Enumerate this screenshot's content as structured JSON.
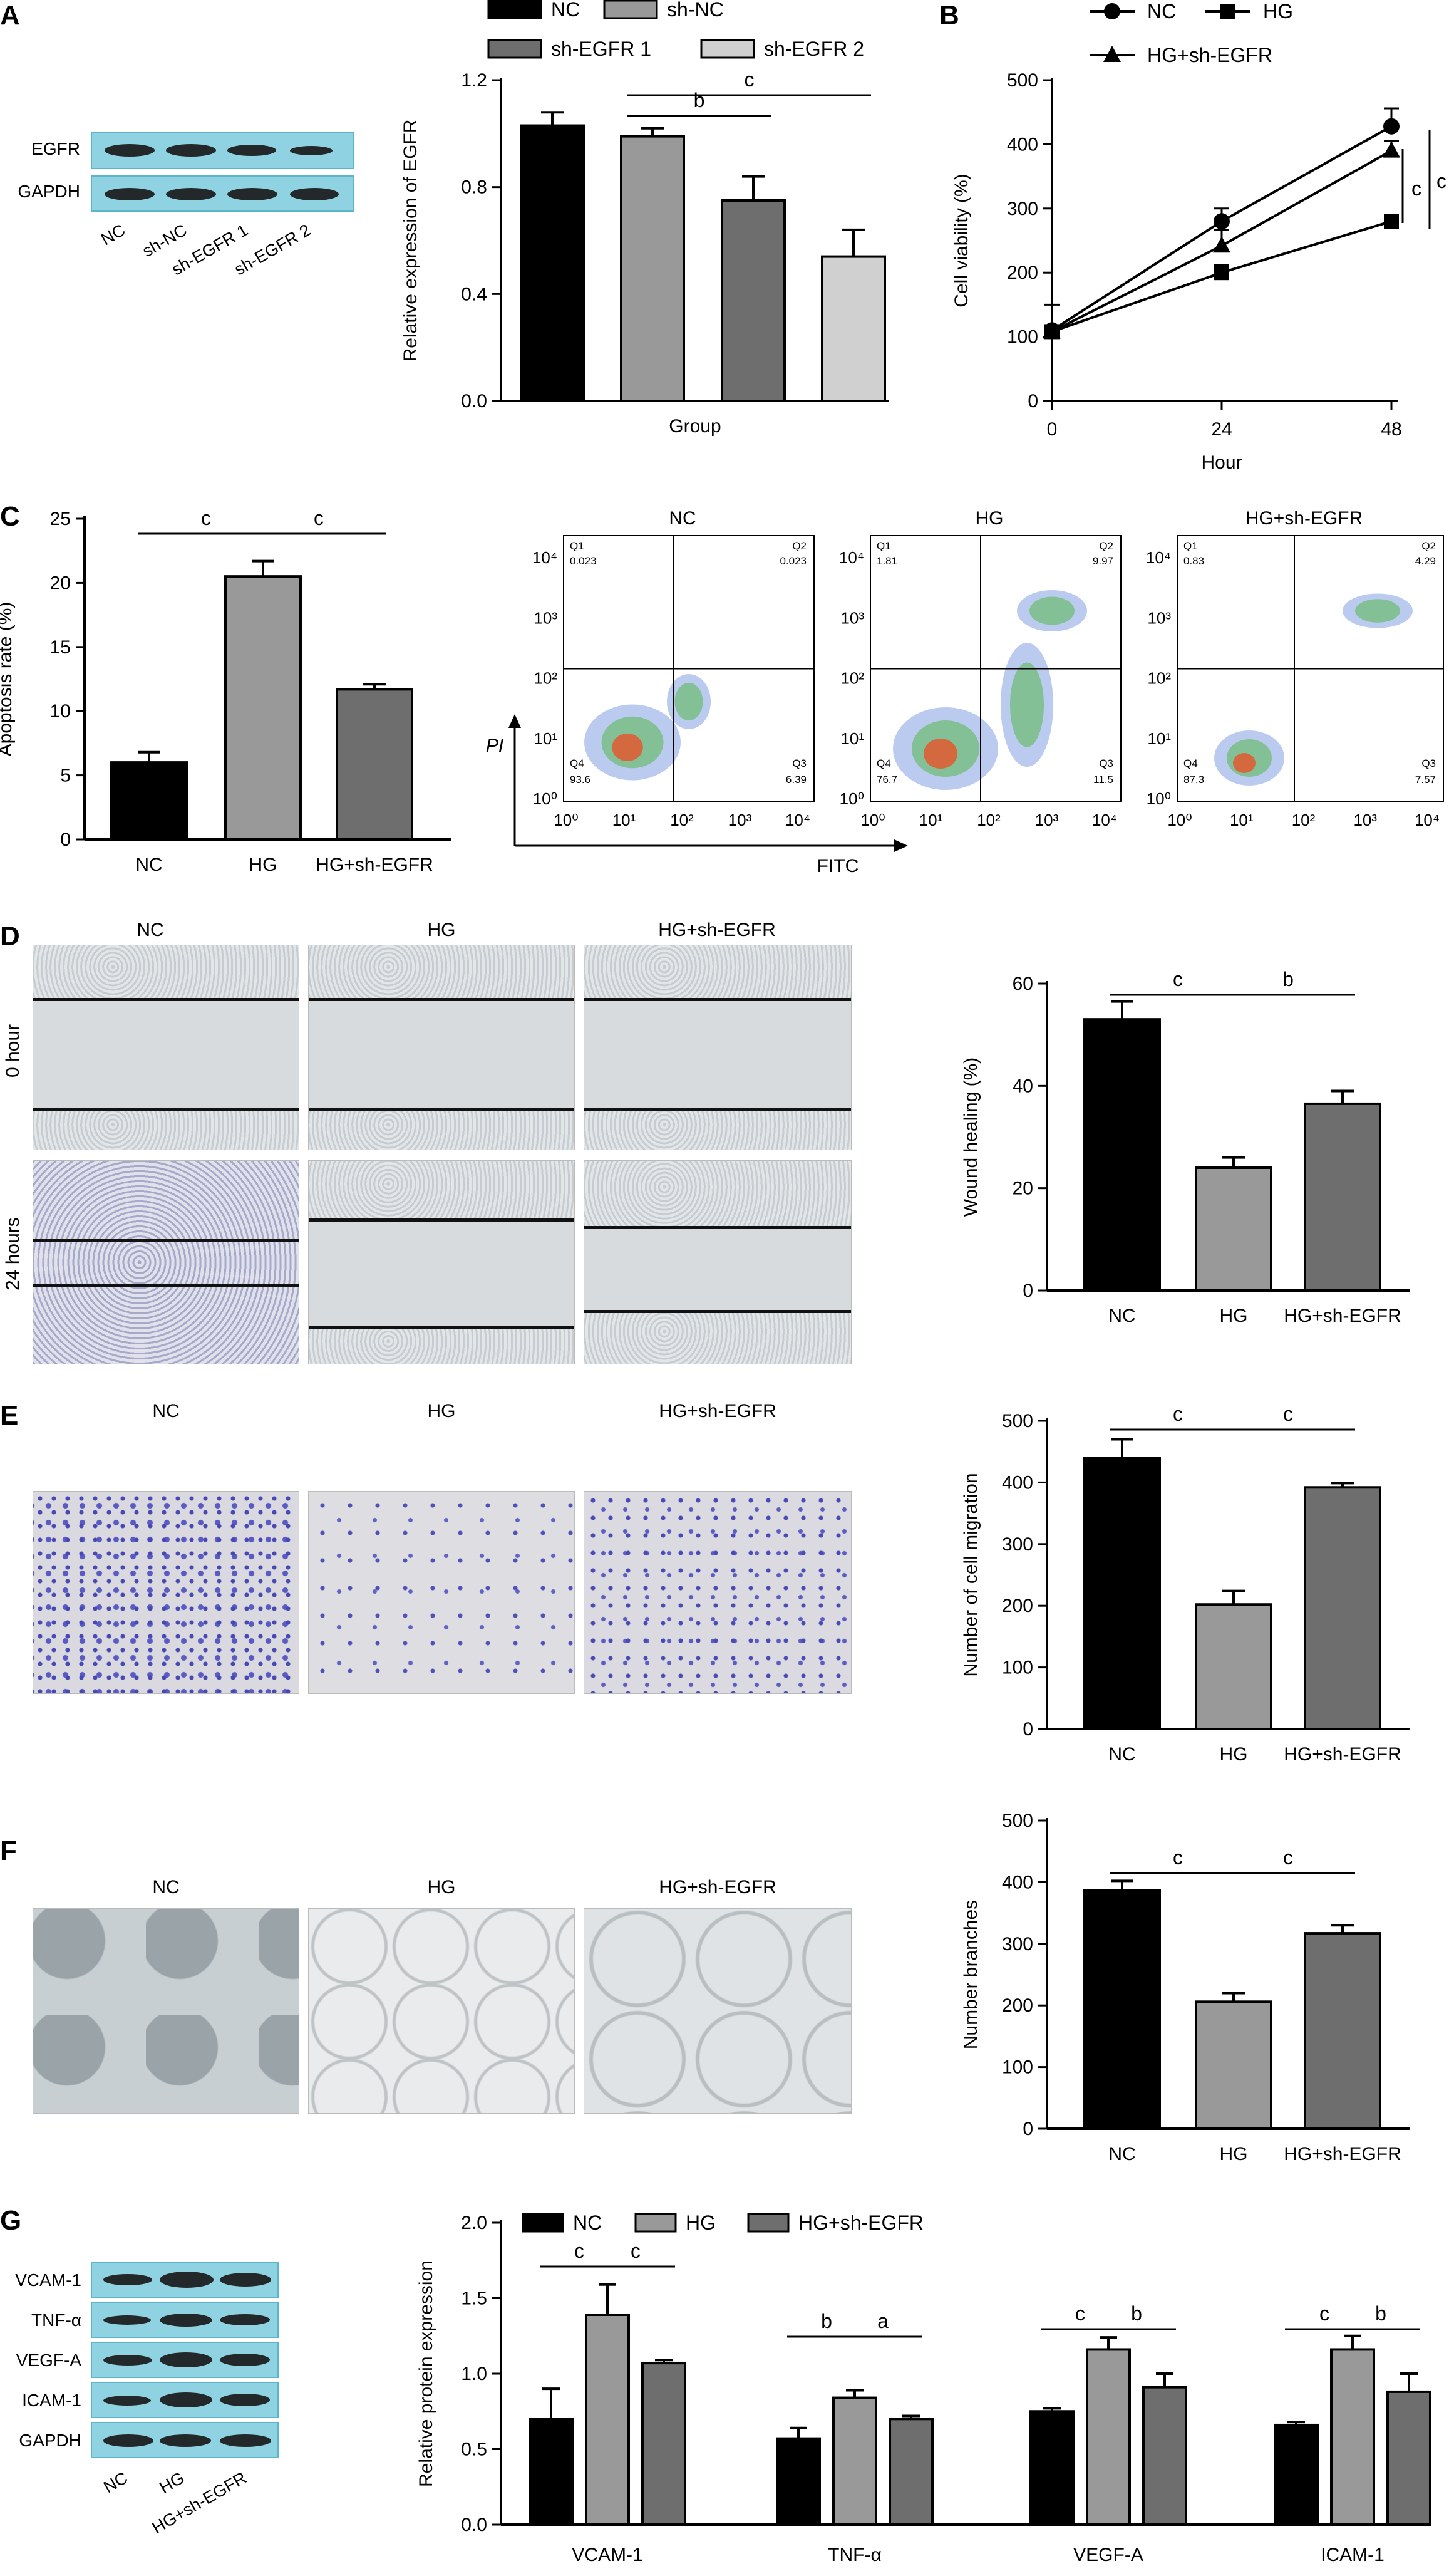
{
  "panels": {
    "A": {
      "letter": "A",
      "blot": {
        "rows": [
          "EGFR",
          "GAPDH"
        ],
        "lanes": [
          "NC",
          "sh-NC",
          "sh-EGFR 1",
          "sh-EGFR 2"
        ]
      }
    },
    "B": {
      "letter": "B"
    },
    "C": {
      "letter": "C",
      "flow": {
        "titles": [
          "NC",
          "HG",
          "HG+sh-EGFR"
        ],
        "xlabel": "FITC",
        "ylabel": "PI",
        "ticks": [
          "10⁰",
          "10¹",
          "10²",
          "10³",
          "10⁴"
        ],
        "quadrants": [
          {
            "q1": "Q1",
            "q1v": "0.023",
            "q2": "Q2",
            "q2v": "0.023",
            "q3": "Q3",
            "q3v": "6.39",
            "q4": "Q4",
            "q4v": "93.6"
          },
          {
            "q1": "Q1",
            "q1v": "1.81",
            "q2": "Q2",
            "q2v": "9.97",
            "q3": "Q3",
            "q3v": "11.5",
            "q4": "Q4",
            "q4v": "76.7"
          },
          {
            "q1": "Q1",
            "q1v": "0.83",
            "q2": "Q2",
            "q2v": "4.29",
            "q3": "Q3",
            "q3v": "7.57",
            "q4": "Q4",
            "q4v": "87.3"
          }
        ]
      }
    },
    "D": {
      "letter": "D",
      "titles": [
        "NC",
        "HG",
        "HG+sh-EGFR"
      ],
      "rows": [
        "0 hour",
        "24 hours"
      ]
    },
    "E": {
      "letter": "E",
      "titles": [
        "NC",
        "HG",
        "HG+sh-EGFR"
      ]
    },
    "F": {
      "letter": "F",
      "titles": [
        "NC",
        "HG",
        "HG+sh-EGFR"
      ]
    },
    "G": {
      "letter": "G",
      "blot": {
        "rows": [
          "VCAM-1",
          "TNF-α",
          "VEGF-A",
          "ICAM-1",
          "GAPDH"
        ],
        "lanes": [
          "NC",
          "HG",
          "HG+sh-EGFR"
        ]
      }
    }
  },
  "chart_data": [
    {
      "id": "A",
      "type": "bar",
      "legend": [
        "NC",
        "sh-NC",
        "sh-EGFR 1",
        "sh-EGFR 2"
      ],
      "categories": [
        "NC",
        "sh-NC",
        "sh-EGFR 1",
        "sh-EGFR 2"
      ],
      "values": [
        1.03,
        0.99,
        0.75,
        0.54
      ],
      "errors": [
        0.05,
        0.03,
        0.09,
        0.1
      ],
      "colors": [
        "#000000",
        "#999999",
        "#6e6e6e",
        "#d0d0d0"
      ],
      "xlabel": "Group",
      "ylabel": "Relative expression of EGFR",
      "ylim": [
        0,
        1.2
      ],
      "yticks": [
        "0.0",
        "0.4",
        "0.8",
        "1.2"
      ],
      "significance": [
        {
          "from": 1,
          "to": 2,
          "label": "b"
        },
        {
          "from": 1,
          "to": 3,
          "label": "c"
        }
      ]
    },
    {
      "id": "B",
      "type": "line",
      "x": [
        0,
        24,
        48
      ],
      "xticks": [
        "0",
        "24",
        "48"
      ],
      "series": [
        {
          "name": "NC",
          "values": [
            110,
            280,
            428
          ],
          "errors": [
            40,
            20,
            28
          ],
          "marker": "circle"
        },
        {
          "name": "HG",
          "values": [
            108,
            200,
            280
          ],
          "errors": [
            10,
            12,
            8
          ],
          "marker": "square"
        },
        {
          "name": "HG+sh-EGFR",
          "values": [
            108,
            242,
            390
          ],
          "errors": [
            8,
            25,
            15
          ],
          "marker": "triangle"
        }
      ],
      "xlabel": "Hour",
      "ylabel": "Cell viability (%)",
      "ylim": [
        0,
        500
      ],
      "yticks": [
        "0",
        "100",
        "200",
        "300",
        "400",
        "500"
      ],
      "brackets": [
        "c",
        "c"
      ]
    },
    {
      "id": "C",
      "type": "bar",
      "categories": [
        "NC",
        "HG",
        "HG+sh-EGFR"
      ],
      "values": [
        6.0,
        20.5,
        11.7
      ],
      "errors": [
        0.8,
        1.2,
        0.4
      ],
      "colors": [
        "#000000",
        "#999999",
        "#6e6e6e"
      ],
      "ylabel": "Apoptosis rate (%)",
      "ylim": [
        0,
        25
      ],
      "yticks": [
        "0",
        "5",
        "10",
        "15",
        "20",
        "25"
      ],
      "significance": [
        {
          "from": 0,
          "to": 1,
          "label": "c"
        },
        {
          "from": 1,
          "to": 2,
          "label": "c"
        }
      ]
    },
    {
      "id": "D",
      "type": "bar",
      "categories": [
        "NC",
        "HG",
        "HG+sh-EGFR"
      ],
      "values": [
        53,
        24,
        36.5
      ],
      "errors": [
        3.5,
        2,
        2.5
      ],
      "colors": [
        "#000000",
        "#999999",
        "#6e6e6e"
      ],
      "ylabel": "Wound healing (%)",
      "ylim": [
        0,
        60
      ],
      "yticks": [
        "0",
        "20",
        "40",
        "60"
      ],
      "significance": [
        {
          "from": 0,
          "to": 1,
          "label": "c"
        },
        {
          "from": 1,
          "to": 2,
          "label": "b"
        }
      ]
    },
    {
      "id": "E",
      "type": "bar",
      "categories": [
        "NC",
        "HG",
        "HG+sh-EGFR"
      ],
      "values": [
        440,
        202,
        392
      ],
      "errors": [
        30,
        22,
        7
      ],
      "colors": [
        "#000000",
        "#999999",
        "#6e6e6e"
      ],
      "ylabel": "Number of cell migration",
      "ylim": [
        0,
        500
      ],
      "yticks": [
        "0",
        "100",
        "200",
        "300",
        "400",
        "500"
      ],
      "significance": [
        {
          "from": 0,
          "to": 1,
          "label": "c"
        },
        {
          "from": 1,
          "to": 2,
          "label": "c"
        }
      ]
    },
    {
      "id": "F",
      "type": "bar",
      "categories": [
        "NC",
        "HG",
        "HG+sh-EGFR"
      ],
      "values": [
        387,
        206,
        317
      ],
      "errors": [
        15,
        14,
        13
      ],
      "colors": [
        "#000000",
        "#999999",
        "#6e6e6e"
      ],
      "ylabel": "Number branches",
      "ylim": [
        0,
        500
      ],
      "yticks": [
        "0",
        "100",
        "200",
        "300",
        "400",
        "500"
      ],
      "significance": [
        {
          "from": 0,
          "to": 1,
          "label": "c"
        },
        {
          "from": 1,
          "to": 2,
          "label": "c"
        }
      ]
    },
    {
      "id": "G",
      "type": "bar",
      "legend": [
        "NC",
        "HG",
        "HG+sh-EGFR"
      ],
      "categories": [
        "VCAM-1",
        "TNF-α",
        "VEGF-A",
        "ICAM-1"
      ],
      "series": [
        {
          "name": "NC",
          "values": [
            0.7,
            0.57,
            0.75,
            0.66
          ],
          "errors": [
            0.2,
            0.07,
            0.02,
            0.02
          ]
        },
        {
          "name": "HG",
          "values": [
            1.39,
            0.84,
            1.16,
            1.16
          ],
          "errors": [
            0.2,
            0.05,
            0.08,
            0.09
          ]
        },
        {
          "name": "HG+sh-EGFR",
          "values": [
            1.07,
            0.7,
            0.91,
            0.88
          ],
          "errors": [
            0.02,
            0.02,
            0.09,
            0.12
          ]
        }
      ],
      "colors": [
        "#000000",
        "#999999",
        "#6e6e6e"
      ],
      "ylabel": "Relative protein expression",
      "ylim": [
        0,
        2.0
      ],
      "yticks": [
        "0.0",
        "0.5",
        "1.0",
        "1.5",
        "2.0"
      ],
      "significance": [
        {
          "cat": 0,
          "from": 0,
          "to": 1,
          "label": "c"
        },
        {
          "cat": 0,
          "from": 1,
          "to": 2,
          "label": "c"
        },
        {
          "cat": 1,
          "from": 0,
          "to": 1,
          "label": "b"
        },
        {
          "cat": 1,
          "from": 1,
          "to": 2,
          "label": "a"
        },
        {
          "cat": 2,
          "from": 0,
          "to": 1,
          "label": "c"
        },
        {
          "cat": 2,
          "from": 1,
          "to": 2,
          "label": "b"
        },
        {
          "cat": 3,
          "from": 0,
          "to": 1,
          "label": "c"
        },
        {
          "cat": 3,
          "from": 1,
          "to": 2,
          "label": "b"
        }
      ]
    }
  ]
}
